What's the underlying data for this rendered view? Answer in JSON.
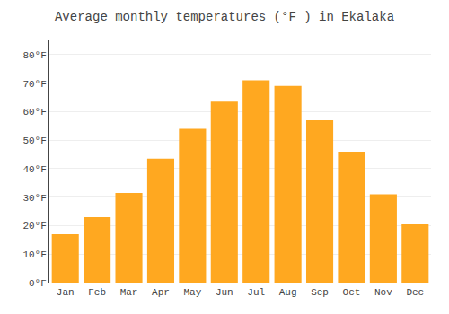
{
  "chart_data": {
    "type": "bar",
    "title": "Average monthly temperatures (°F ) in Ekalaka",
    "categories": [
      "Jan",
      "Feb",
      "Mar",
      "Apr",
      "May",
      "Jun",
      "Jul",
      "Aug",
      "Sep",
      "Oct",
      "Nov",
      "Dec"
    ],
    "values": [
      17,
      23,
      31.5,
      43.5,
      54,
      63.5,
      71,
      69,
      57,
      46,
      31,
      20.5
    ],
    "color": "#FFA820",
    "ylim": [
      0,
      85
    ],
    "yticks": [
      {
        "value": 0,
        "label": "0°F"
      },
      {
        "value": 10,
        "label": "10°F"
      },
      {
        "value": 20,
        "label": "20°F"
      },
      {
        "value": 30,
        "label": "30°F"
      },
      {
        "value": 40,
        "label": "40°F"
      },
      {
        "value": 50,
        "label": "50°F"
      },
      {
        "value": 60,
        "label": "60°F"
      },
      {
        "value": 70,
        "label": "70°F"
      },
      {
        "value": 80,
        "label": "80°F"
      }
    ],
    "grid": true
  }
}
